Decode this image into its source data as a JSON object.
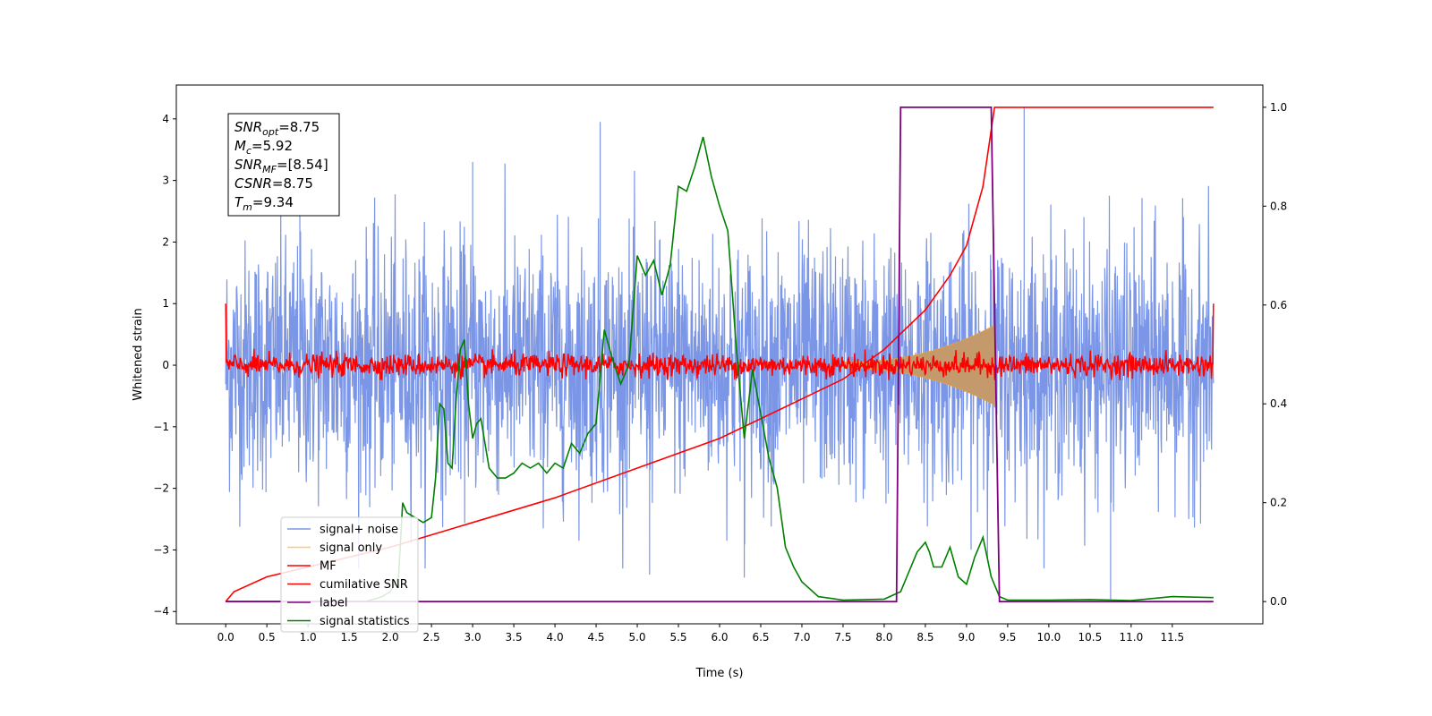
{
  "chart_data": {
    "type": "line",
    "title": "",
    "xlabel": "Time (s)",
    "ylabel": "Whitened strain",
    "xlim": [
      -0.6,
      12.6
    ],
    "ylim": [
      -4.2,
      4.55
    ],
    "y2lim": [
      -0.045,
      1.045
    ],
    "xticks": [
      "0.0",
      "0.5",
      "1.0",
      "1.5",
      "2.0",
      "2.5",
      "3.0",
      "3.5",
      "4.0",
      "4.5",
      "5.0",
      "5.5",
      "6.0",
      "6.5",
      "7.0",
      "7.5",
      "8.0",
      "8.5",
      "9.0",
      "9.5",
      "10.0",
      "10.5",
      "11.0",
      "11.5"
    ],
    "yticks": [
      "4",
      "3",
      "2",
      "1",
      "0",
      "−1",
      "−2",
      "−3",
      "−4"
    ],
    "yticks_values": [
      4,
      3,
      2,
      1,
      0,
      -1,
      -2,
      -3,
      -4
    ],
    "y2ticks": [
      "1.0",
      "0.8",
      "0.6",
      "0.4",
      "0.2",
      "0.0"
    ],
    "y2ticks_values": [
      1.0,
      0.8,
      0.6,
      0.4,
      0.2,
      0.0
    ],
    "grid": false,
    "legend_position": "bottom-left",
    "annotation": {
      "lines": [
        {
          "base": "SNR",
          "sub": "opt",
          "value": "=8.75"
        },
        {
          "base": "M",
          "sub": "c",
          "value": "=5.92"
        },
        {
          "base": "SNR",
          "sub": "MF",
          "value": "=[8.54]"
        },
        {
          "base": "CSNR",
          "sub": "",
          "value": "=8.75"
        },
        {
          "base": "T",
          "sub": "m",
          "value": "=9.34"
        }
      ]
    },
    "colors": {
      "signal_noise": "#7b96e6",
      "signal_only": "#f5a623",
      "mf": "#ff0000",
      "cumulative_snr": "#ff0000",
      "label": "#800080",
      "signal_statistics": "#008000",
      "signal_band_fill": "#c49a6c"
    },
    "series": [
      {
        "name": "signal+ noise",
        "axis": "left",
        "x_range": [
          0.0,
          12.0
        ],
        "envelope_approx": [
          -2.5,
          2.5
        ],
        "peak_samples": [
          [
            0.9,
            3.4
          ],
          [
            3.0,
            3.3
          ],
          [
            4.55,
            3.95
          ],
          [
            9.7,
            4.2
          ],
          [
            10.75,
            -3.8
          ],
          [
            5.15,
            -3.4
          ],
          [
            6.3,
            -3.45
          ]
        ]
      },
      {
        "name": "signal only",
        "axis": "left",
        "x_range": [
          7.5,
          9.34
        ],
        "envelope_approx": [
          -0.65,
          0.65
        ]
      },
      {
        "name": "MF",
        "axis": "left",
        "x_range": [
          0.0,
          12.0
        ],
        "envelope_approx": [
          -0.15,
          0.15
        ],
        "edge_values": [
          1.0,
          1.0
        ]
      },
      {
        "name": "cumilative SNR",
        "axis": "right",
        "x": [
          0.0,
          0.1,
          0.5,
          1.0,
          2.0,
          3.0,
          4.0,
          5.0,
          6.0,
          7.0,
          7.5,
          8.0,
          8.5,
          8.8,
          9.0,
          9.2,
          9.34,
          9.35,
          12.0
        ],
        "y": [
          0.0,
          0.02,
          0.05,
          0.07,
          0.11,
          0.16,
          0.21,
          0.27,
          0.33,
          0.41,
          0.45,
          0.51,
          0.59,
          0.66,
          0.72,
          0.84,
          1.0,
          1.0,
          1.0
        ]
      },
      {
        "name": "label",
        "axis": "right",
        "x": [
          0.0,
          8.15,
          8.2,
          9.3,
          9.4,
          12.0
        ],
        "y": [
          0.0,
          0.0,
          1.0,
          1.0,
          0.0,
          0.0
        ]
      },
      {
        "name": "signal statistics",
        "axis": "right",
        "x": [
          0.0,
          1.7,
          1.8,
          1.9,
          2.0,
          2.1,
          2.15,
          2.2,
          2.3,
          2.4,
          2.5,
          2.55,
          2.6,
          2.65,
          2.7,
          2.75,
          2.8,
          2.85,
          2.9,
          2.95,
          3.0,
          3.05,
          3.1,
          3.2,
          3.3,
          3.4,
          3.5,
          3.6,
          3.7,
          3.8,
          3.9,
          4.0,
          4.1,
          4.2,
          4.3,
          4.4,
          4.5,
          4.6,
          4.7,
          4.8,
          4.9,
          5.0,
          5.1,
          5.2,
          5.3,
          5.4,
          5.5,
          5.6,
          5.7,
          5.8,
          5.9,
          6.0,
          6.1,
          6.2,
          6.3,
          6.4,
          6.5,
          6.6,
          6.7,
          6.8,
          6.9,
          7.0,
          7.2,
          7.5,
          8.0,
          8.2,
          8.3,
          8.4,
          8.5,
          8.55,
          8.6,
          8.7,
          8.8,
          8.9,
          9.0,
          9.1,
          9.2,
          9.3,
          9.4,
          9.5,
          10.0,
          10.5,
          11.0,
          11.5,
          12.0
        ],
        "y": [
          0.0,
          0.0,
          0.005,
          0.01,
          0.02,
          0.05,
          0.2,
          0.18,
          0.17,
          0.16,
          0.17,
          0.25,
          0.4,
          0.39,
          0.28,
          0.27,
          0.41,
          0.51,
          0.53,
          0.4,
          0.33,
          0.36,
          0.37,
          0.27,
          0.25,
          0.25,
          0.26,
          0.28,
          0.27,
          0.28,
          0.26,
          0.28,
          0.27,
          0.32,
          0.3,
          0.34,
          0.36,
          0.55,
          0.49,
          0.44,
          0.48,
          0.7,
          0.66,
          0.69,
          0.62,
          0.68,
          0.84,
          0.83,
          0.88,
          0.94,
          0.86,
          0.8,
          0.75,
          0.52,
          0.33,
          0.47,
          0.38,
          0.29,
          0.23,
          0.11,
          0.07,
          0.04,
          0.01,
          0.003,
          0.005,
          0.02,
          0.06,
          0.1,
          0.12,
          0.1,
          0.07,
          0.07,
          0.11,
          0.05,
          0.035,
          0.09,
          0.13,
          0.05,
          0.01,
          0.003,
          0.003,
          0.004,
          0.002,
          0.01,
          0.008
        ]
      }
    ],
    "legend": [
      "signal+ noise",
      "signal only",
      "MF",
      "cumilative SNR",
      "label",
      "signal statistics"
    ]
  }
}
